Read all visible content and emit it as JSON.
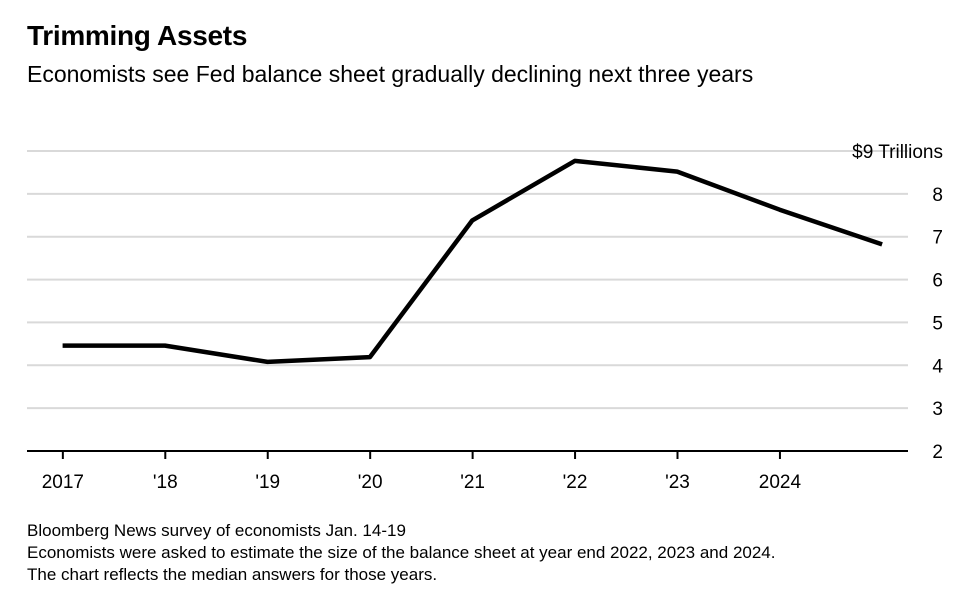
{
  "header": {
    "title": "Trimming Assets",
    "subtitle": "Economists see Fed balance sheet gradually declining next three years"
  },
  "chart_data": {
    "type": "line",
    "title": "Trimming Assets",
    "subtitle": "Economists see Fed balance sheet gradually declining next three years",
    "xlabel": "",
    "ylabel": "",
    "x": [
      2017,
      2018,
      2019,
      2020,
      2021,
      2022,
      2023,
      2024,
      2025
    ],
    "xtick_values": [
      2017,
      2018,
      2019,
      2020,
      2021,
      2022,
      2023,
      2024
    ],
    "xtick_labels": [
      "2017",
      "'18",
      "'19",
      "'20",
      "'21",
      "'22",
      "'23",
      "2024"
    ],
    "ytick_values": [
      2,
      3,
      4,
      5,
      6,
      7,
      8,
      9
    ],
    "ytick_labels": [
      "2",
      "3",
      "4",
      "5",
      "6",
      "7",
      "8",
      "$9 Trillions"
    ],
    "ylim": [
      2,
      9
    ],
    "xlim": [
      2016.65,
      2025.25
    ],
    "grid": true,
    "series": [
      {
        "name": "",
        "color": "#000000",
        "points": [
          {
            "x": "2016-12-31",
            "y": 4.46
          },
          {
            "x": "2017-12-31",
            "y": 4.46
          },
          {
            "x": "2018-12-31",
            "y": 4.08
          },
          {
            "x": "2019-12-31",
            "y": 4.19
          },
          {
            "x": "2020-12-31",
            "y": 7.38
          },
          {
            "x": "2021-12-31",
            "y": 8.77
          },
          {
            "x": "2022-12-31",
            "y": 8.52
          },
          {
            "x": "2023-12-31",
            "y": 7.63
          },
          {
            "x": "2024-12-31",
            "y": 6.82
          }
        ]
      }
    ]
  },
  "footer": {
    "source": "Bloomberg News survey of economists Jan. 14-19",
    "note_line1": "Economists were asked to estimate the size of the balance sheet at year end 2022, 2023 and 2024.",
    "note_line2": "The chart reflects the median answers for those years."
  },
  "colors": {
    "line": "#000000",
    "grid": "#d9d9d9",
    "axis": "#000000",
    "text": "#000000"
  }
}
